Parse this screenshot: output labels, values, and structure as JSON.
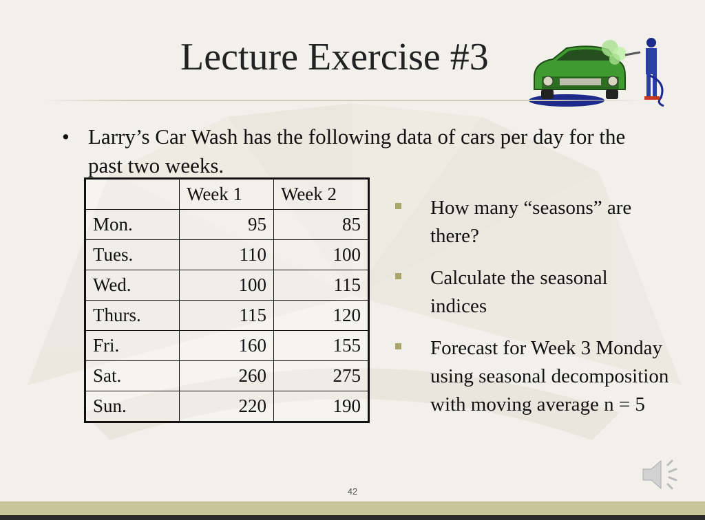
{
  "slide": {
    "title": "Lecture Exercise #3",
    "bullet": "Larry’s Car Wash has the following data of cars per day for the past two weeks.",
    "bullet_marker": "•",
    "table": {
      "headers": [
        "",
        "Week 1",
        "Week 2"
      ],
      "rows": [
        {
          "day": "Mon.",
          "w1": "95",
          "w2": "85"
        },
        {
          "day": "Tues.",
          "w1": "110",
          "w2": "100"
        },
        {
          "day": "Wed.",
          "w1": "100",
          "w2": "115"
        },
        {
          "day": "Thurs.",
          "w1": "115",
          "w2": "120"
        },
        {
          "day": "Fri.",
          "w1": "160",
          "w2": "155"
        },
        {
          "day": "Sat.",
          "w1": "260",
          "w2": "275"
        },
        {
          "day": "Sun.",
          "w1": "220",
          "w2": "190"
        }
      ]
    },
    "questions": [
      "How many “seasons” are there?",
      "Calculate the seasonal indices",
      "Forecast for Week 3 Monday using seasonal decomposition with moving average n = 5"
    ],
    "page_number": "42"
  },
  "colors": {
    "background": "#f2f0ea",
    "accent_square": "#a9a66a",
    "bottom_bar": "#c8c49a",
    "car_green": "#3f9a2f"
  },
  "icons": [
    "car-wash-clipart",
    "speaker-icon"
  ]
}
